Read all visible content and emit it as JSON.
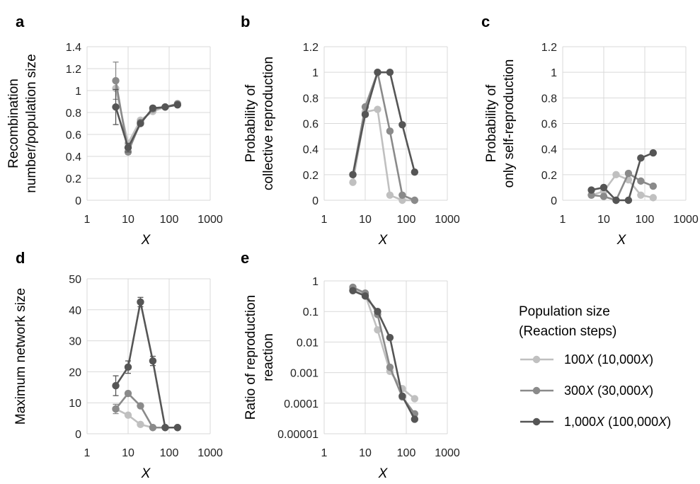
{
  "series_legend": {
    "title_line1": "Population size",
    "title_line2": "(Reaction steps)",
    "items": [
      {
        "label_pre": "100",
        "label_x": "X",
        "label_mid": " (10,000",
        "label_x2": "X",
        "label_post": ")",
        "color": "#c0c0c0"
      },
      {
        "label_pre": "300",
        "label_x": "X",
        "label_mid": " (30,000",
        "label_x2": "X",
        "label_post": ")",
        "color": "#8a8a8a"
      },
      {
        "label_pre": "1,000",
        "label_x": "X",
        "label_mid": " (100,000",
        "label_x2": "X",
        "label_post": ")",
        "color": "#555555"
      }
    ]
  },
  "chart_data": [
    {
      "panel": "a",
      "type": "line",
      "ylabel": [
        "Recombination",
        "number/population size"
      ],
      "xlabel": "X",
      "xscale": "log",
      "xlim": [
        1,
        1000
      ],
      "xticks": [
        "1",
        "10",
        "100",
        "1000"
      ],
      "ylim": [
        0,
        1.4
      ],
      "yticks": [
        "0",
        "0.2",
        "0.4",
        "0.6",
        "0.8",
        "1",
        "1.2",
        "1.4"
      ],
      "grid": true,
      "x": [
        5,
        10,
        20,
        40,
        80,
        160
      ],
      "series": [
        {
          "values": [
            1.02,
            0.52,
            0.73,
            0.81,
            0.85,
            0.87
          ],
          "color": "#c0c0c0"
        },
        {
          "values": [
            1.09,
            0.44,
            0.71,
            0.83,
            0.85,
            0.88
          ],
          "color": "#8a8a8a",
          "err": [
            0.17,
            0.02,
            0.02,
            0.02,
            0.01,
            0.01
          ]
        },
        {
          "values": [
            0.85,
            0.48,
            0.7,
            0.84,
            0.85,
            0.87
          ],
          "color": "#555555",
          "err": [
            0.16,
            0.04,
            0.02,
            0.02,
            0.01,
            0.01
          ]
        }
      ]
    },
    {
      "panel": "b",
      "type": "line",
      "ylabel": [
        "Probability of",
        "collective reproduction"
      ],
      "xlabel": "X",
      "xscale": "log",
      "xlim": [
        1,
        1000
      ],
      "xticks": [
        "1",
        "10",
        "100",
        "1000"
      ],
      "ylim": [
        0,
        1.2
      ],
      "yticks": [
        "0",
        "0.2",
        "0.4",
        "0.6",
        "0.8",
        "1",
        "1.2"
      ],
      "grid": true,
      "x": [
        5,
        10,
        20,
        40,
        80,
        160
      ],
      "series": [
        {
          "values": [
            0.14,
            0.69,
            0.71,
            0.04,
            0.0,
            0.0
          ],
          "color": "#c0c0c0"
        },
        {
          "values": [
            0.2,
            0.73,
            1.0,
            0.54,
            0.04,
            0.0
          ],
          "color": "#8a8a8a"
        },
        {
          "values": [
            0.2,
            0.67,
            1.0,
            1.0,
            0.59,
            0.22
          ],
          "color": "#555555"
        }
      ]
    },
    {
      "panel": "c",
      "type": "line",
      "ylabel": [
        "Probability of",
        "only self-reproduction"
      ],
      "xlabel": "X",
      "xscale": "log",
      "xlim": [
        1,
        1000
      ],
      "xticks": [
        "1",
        "10",
        "100",
        "1000"
      ],
      "ylim": [
        0,
        1.2
      ],
      "yticks": [
        "0",
        "0.2",
        "0.4",
        "0.6",
        "0.8",
        "1",
        "1.2"
      ],
      "grid": true,
      "x": [
        5,
        10,
        20,
        40,
        80,
        160
      ],
      "series": [
        {
          "values": [
            0.04,
            0.07,
            0.2,
            0.16,
            0.04,
            0.02
          ],
          "color": "#c0c0c0"
        },
        {
          "values": [
            0.04,
            0.03,
            0.0,
            0.21,
            0.15,
            0.11
          ],
          "color": "#8a8a8a"
        },
        {
          "values": [
            0.08,
            0.1,
            0.0,
            0.0,
            0.33,
            0.37
          ],
          "color": "#555555"
        }
      ]
    },
    {
      "panel": "d",
      "type": "line",
      "ylabel": [
        "Maximum network size"
      ],
      "xlabel": "X",
      "xscale": "log",
      "xlim": [
        1,
        1000
      ],
      "xticks": [
        "1",
        "10",
        "100",
        "1000"
      ],
      "ylim": [
        0,
        50
      ],
      "yticks": [
        "0",
        "10",
        "20",
        "30",
        "40",
        "50"
      ],
      "grid": true,
      "x": [
        5,
        10,
        20,
        40,
        80,
        160
      ],
      "series": [
        {
          "values": [
            8.0,
            6.0,
            3.0,
            2.0,
            2.0,
            2.0
          ],
          "color": "#c0c0c0"
        },
        {
          "values": [
            8.0,
            13.0,
            9.0,
            2.0,
            2.0,
            2.0
          ],
          "color": "#8a8a8a",
          "err": [
            1.5,
            0.5,
            0.4,
            0.2,
            0,
            0
          ]
        },
        {
          "values": [
            15.5,
            21.5,
            42.5,
            23.5,
            2.0,
            2.0
          ],
          "color": "#555555",
          "err": [
            3.2,
            2.0,
            1.5,
            1.5,
            0,
            0
          ]
        }
      ]
    },
    {
      "panel": "e",
      "type": "line",
      "ylabel": [
        "Ratio of reproduction",
        "reaction"
      ],
      "xlabel": "X",
      "xscale": "log",
      "xlim": [
        1,
        1000
      ],
      "xticks": [
        "1",
        "10",
        "100",
        "1000"
      ],
      "yscale": "log",
      "ylim": [
        1e-05,
        1
      ],
      "yticks": [
        "0.00001",
        "0.0001",
        "0.001",
        "0.01",
        "0.1",
        "1"
      ],
      "grid": true,
      "x": [
        5,
        10,
        20,
        40,
        80,
        160
      ],
      "series": [
        {
          "values": [
            0.55,
            0.35,
            0.025,
            0.0011,
            0.0003,
            0.00014
          ],
          "color": "#c0c0c0"
        },
        {
          "values": [
            0.62,
            0.4,
            0.08,
            0.0015,
            0.00016,
            4.5e-05
          ],
          "color": "#8a8a8a"
        },
        {
          "values": [
            0.48,
            0.32,
            0.1,
            0.014,
            0.00017,
            3e-05
          ],
          "color": "#555555"
        }
      ]
    }
  ]
}
